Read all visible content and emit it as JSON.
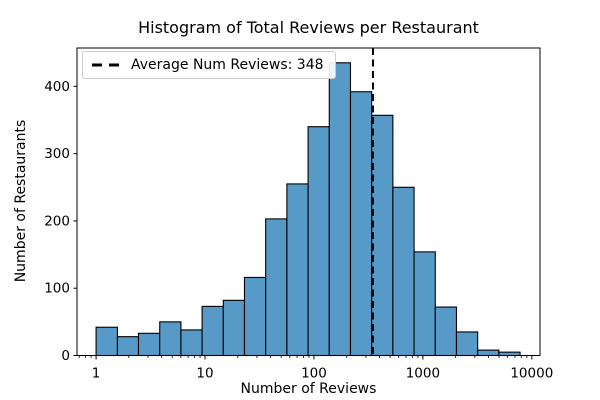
{
  "figure": {
    "colors": {
      "bar_fill": "#5799C7",
      "bar_edge": "#000000",
      "average_line": "#000000",
      "axis": "#000000",
      "legend_border": "#cccccc",
      "background": "#ffffff"
    }
  },
  "chart_data": {
    "type": "bar",
    "subtype": "histogram",
    "title": "Histogram of Total Reviews per Restaurant",
    "xlabel": "Number of Reviews",
    "ylabel": "Number of Restaurants",
    "x_scale": "log",
    "grid": false,
    "legend_position": "upper left",
    "bin_edges": [
      1,
      1.57,
      2.45,
      3.84,
      6.01,
      9.4,
      14.71,
      23.02,
      36.04,
      56.42,
      88.3,
      138.2,
      216.4,
      338.7,
      530.2,
      829.9,
      1299,
      2033,
      3183,
      4982,
      7798
    ],
    "counts": [
      42,
      28,
      33,
      50,
      38,
      73,
      82,
      116,
      203,
      255,
      340,
      435,
      392,
      357,
      250,
      154,
      72,
      35,
      8,
      5
    ],
    "average_line": {
      "value": 348,
      "label": "Average Num Reviews: 348",
      "style": "dashed"
    },
    "x_ticks": [
      1,
      10,
      100,
      1000,
      10000
    ],
    "x_tick_labels": [
      "1",
      "10",
      "100",
      "1000",
      "10000"
    ],
    "y_ticks": [
      0,
      100,
      200,
      300,
      400
    ],
    "y_tick_labels": [
      "0",
      "100",
      "200",
      "300",
      "400"
    ],
    "xlim": [
      0.668,
      11885
    ],
    "ylim": [
      0,
      457
    ]
  }
}
